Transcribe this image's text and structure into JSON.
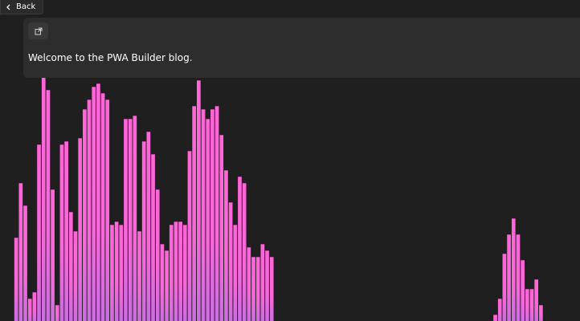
{
  "nav": {
    "back_label": "Back",
    "back_icon": "chevron-left-icon"
  },
  "panel": {
    "open_icon": "open-external-icon",
    "text": "Welcome to the PWA Builder blog."
  },
  "visualizer": {
    "bar_color": "#ff66d8",
    "bar_color_low": "#c86ee0",
    "bar_outline": "#2a1a26",
    "bar_levels": [
      0.26,
      0.43,
      0.36,
      0.07,
      0.09,
      0.55,
      0.76,
      0.72,
      0.41,
      0.05,
      0.55,
      0.56,
      0.34,
      0.28,
      0.57,
      0.66,
      0.69,
      0.73,
      0.74,
      0.71,
      0.69,
      0.3,
      0.31,
      0.3,
      0.63,
      0.63,
      0.64,
      0.28,
      0.56,
      0.59,
      0.52,
      0.41,
      0.24,
      0.22,
      0.3,
      0.31,
      0.31,
      0.3,
      0.53,
      0.67,
      0.75,
      0.66,
      0.63,
      0.66,
      0.67,
      0.58,
      0.47,
      0.37,
      0.3,
      0.45,
      0.43,
      0.23,
      0.2,
      0.2,
      0.24,
      0.22,
      0.2,
      0.0,
      0.0,
      0.0,
      0.0,
      0.0,
      0.0,
      0.0,
      0.0,
      0.0,
      0.0,
      0.0,
      0.0,
      0.0,
      0.0,
      0.0,
      0.0,
      0.0,
      0.0,
      0.0,
      0.0,
      0.0,
      0.0,
      0.0,
      0.0,
      0.0,
      0.0,
      0.0,
      0.0,
      0.0,
      0.0,
      0.0,
      0.0,
      0.0,
      0.0,
      0.0,
      0.0,
      0.0,
      0.0,
      0.0,
      0.0,
      0.0,
      0.0,
      0.0,
      0.0,
      0.0,
      0.0,
      0.0,
      0.0,
      0.02,
      0.07,
      0.21,
      0.27,
      0.32,
      0.27,
      0.19,
      0.1,
      0.1,
      0.13,
      0.05,
      0.0,
      0.0,
      0.0,
      0.0,
      0.0,
      0.0,
      0.0,
      0.0,
      0.0,
      0.0,
      0.0
    ]
  }
}
